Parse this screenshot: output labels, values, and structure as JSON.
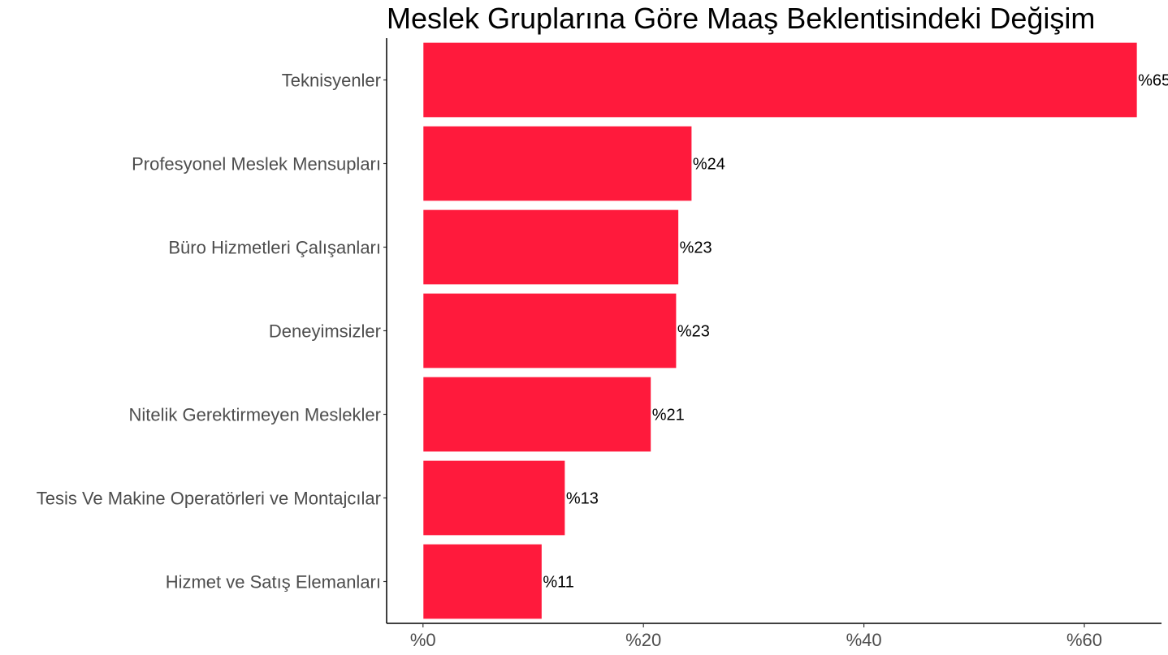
{
  "chart_data": {
    "type": "bar",
    "orientation": "horizontal",
    "title": "Meslek Gruplarına Göre Maaş Beklentisindeki Değişim",
    "xlabel": "",
    "ylabel": "",
    "categories": [
      "Teknisyenler",
      "Profesyonel Meslek Mensupları",
      "Büro Hizmetleri Çalışanları",
      "Deneyimsizler",
      "Nitelik Gerektirmeyen Meslekler",
      "Tesis Ve Makine Operatörleri ve Montajcılar",
      "Hizmet ve Satış Elemanları"
    ],
    "values": [
      64.8,
      24.4,
      23.2,
      23.0,
      20.7,
      12.9,
      10.8
    ],
    "data_labels": [
      "%65",
      "%24",
      "%23",
      "%23",
      "%21",
      "%13",
      "%11"
    ],
    "xticks": [
      0,
      20,
      40,
      60
    ],
    "xtick_labels": [
      "%0",
      "%20",
      "%40",
      "%60"
    ],
    "xlim": [
      -3.3,
      67
    ],
    "bar_color": "#ff1a3c",
    "grid": false,
    "legend": "none"
  }
}
